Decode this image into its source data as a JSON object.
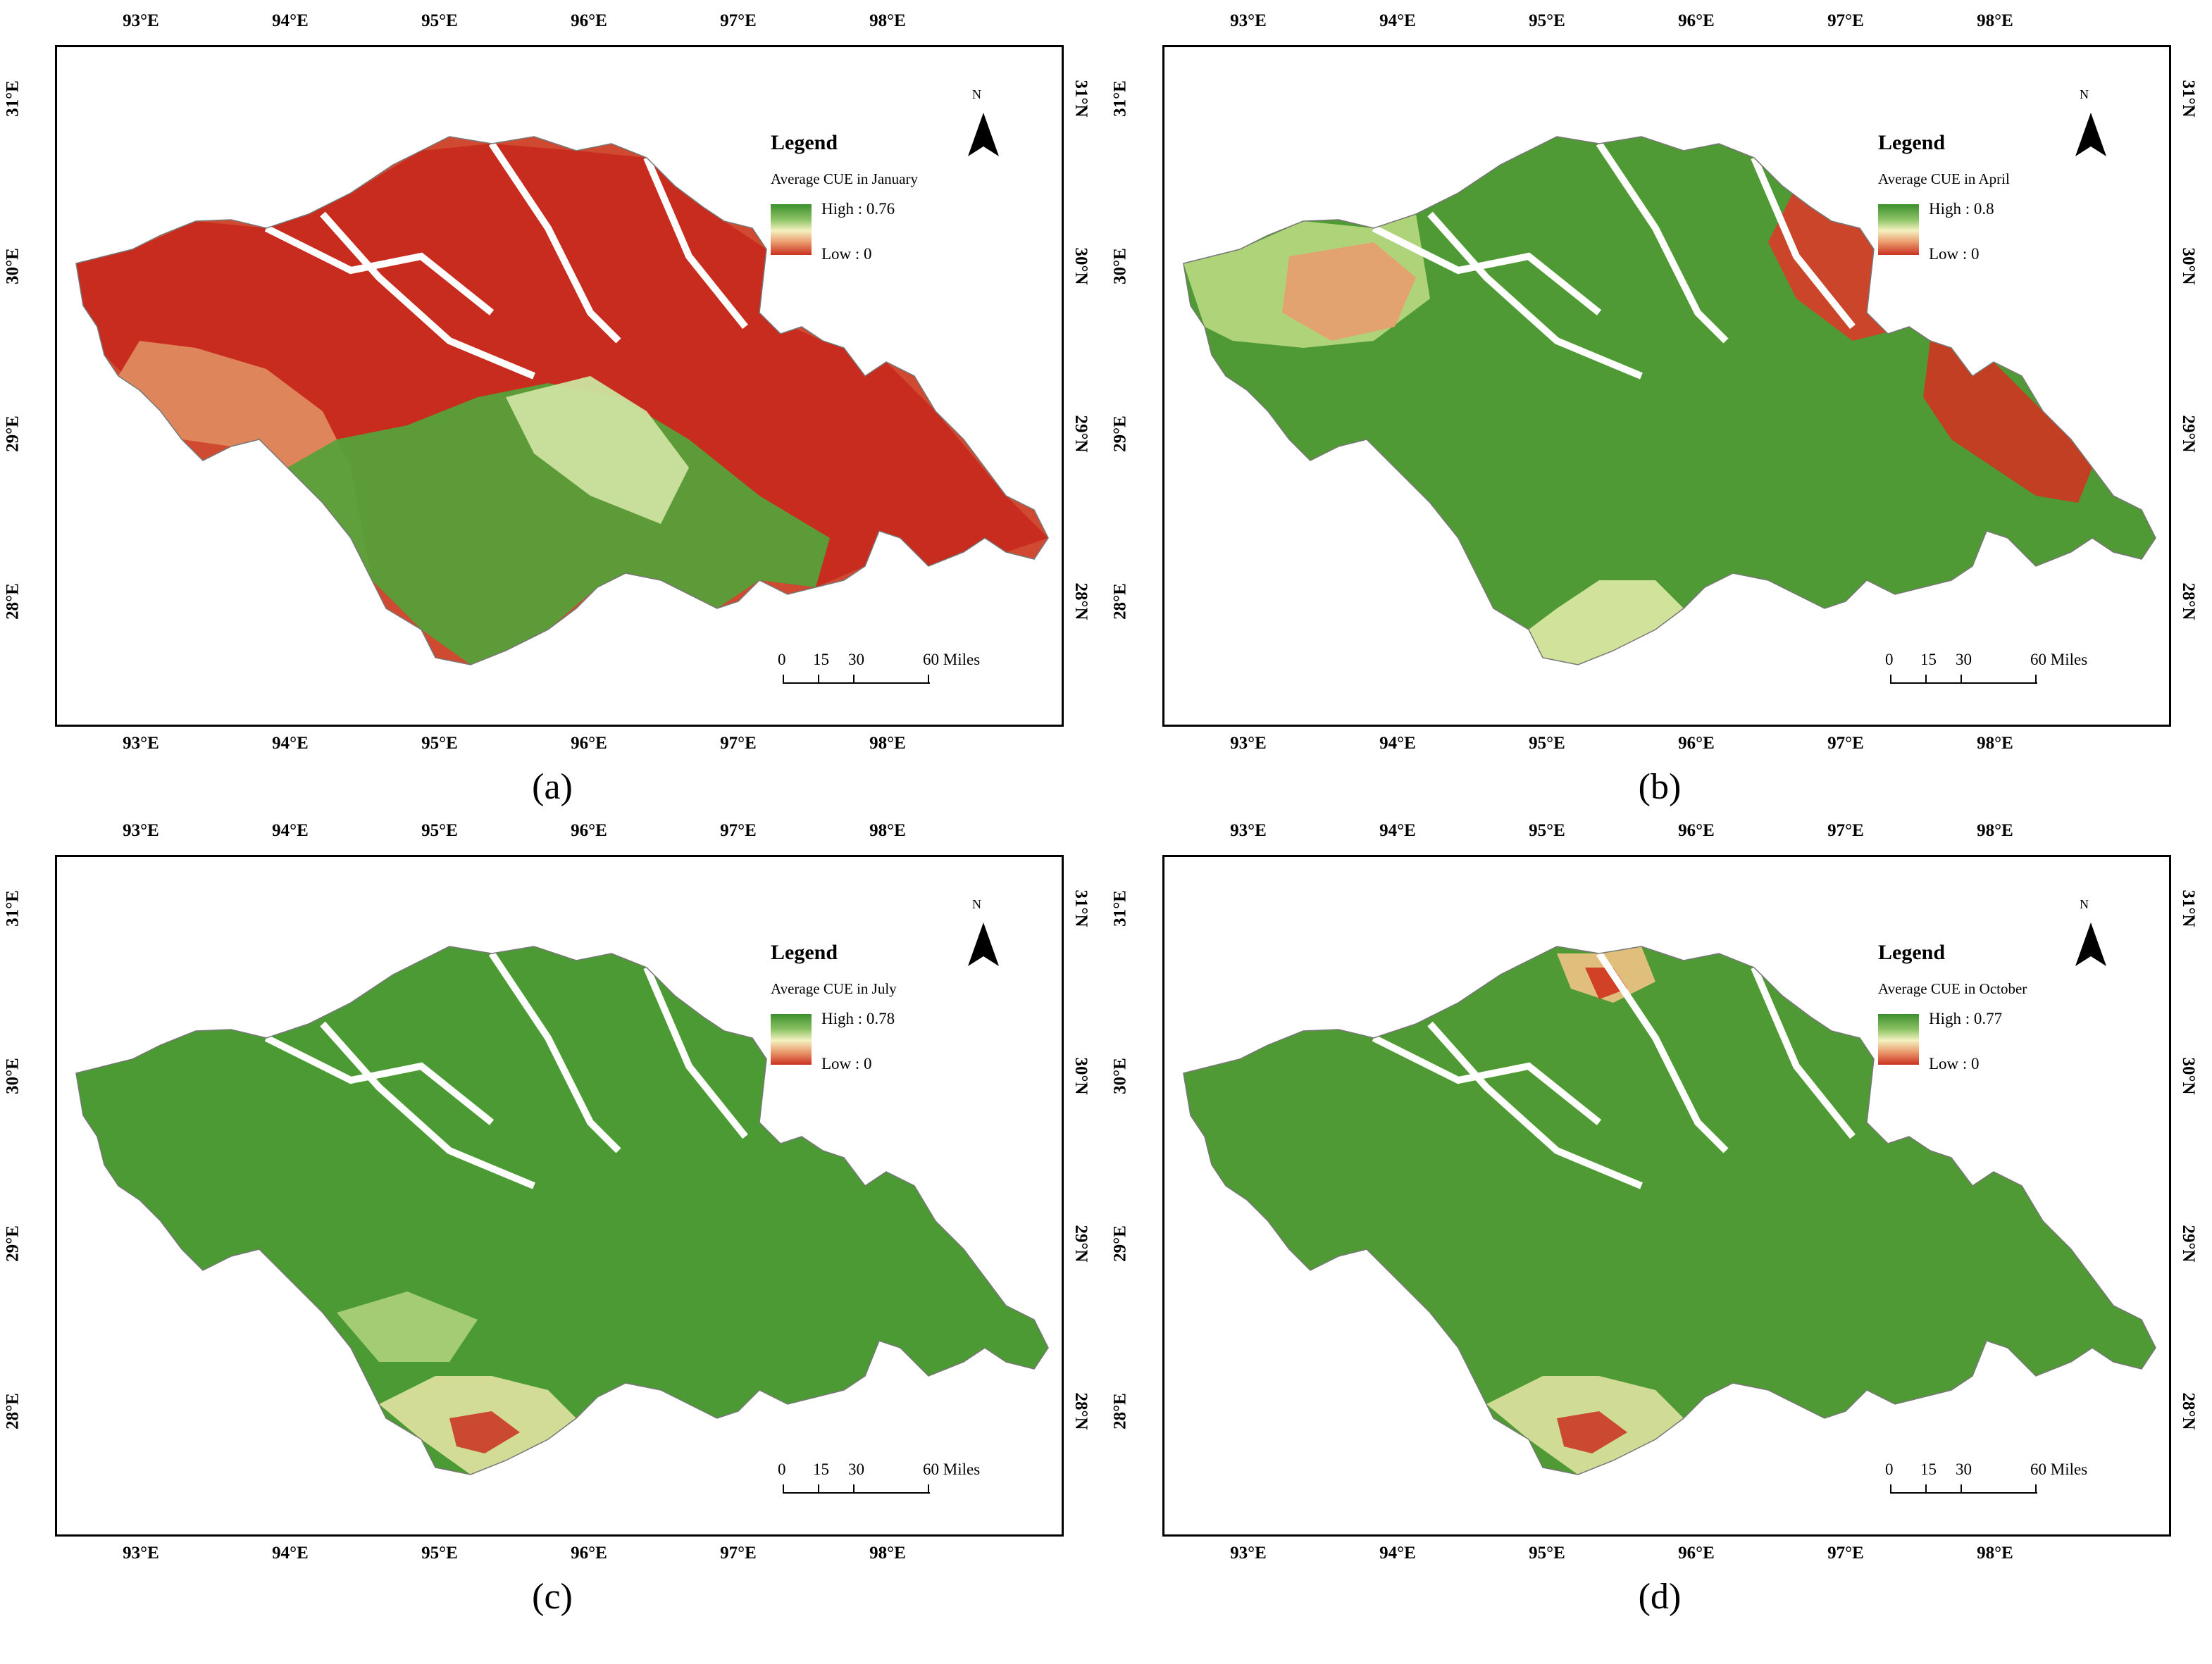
{
  "axes": {
    "lon_ticks": [
      "93°E",
      "94°E",
      "95°E",
      "96°E",
      "97°E",
      "98°E"
    ],
    "lat_ticks": [
      "31°E",
      "30°E",
      "29°E",
      "28°E"
    ],
    "lat_ticks_right": [
      "31°N",
      "30°N",
      "29°N",
      "28°N"
    ]
  },
  "legend_common": {
    "title": "Legend",
    "north": "N",
    "scale_labels": [
      "0",
      "15",
      "30",
      "60 Miles"
    ]
  },
  "colors": {
    "high": "#3c8f2d",
    "mid": "#f4f2c0",
    "low": "#c9321f"
  },
  "panels": [
    {
      "label": "(a)",
      "subtitle": "Average CUE in January",
      "high": "High : 0.76",
      "low": "Low : 0"
    },
    {
      "label": "(b)",
      "subtitle": "Average CUE in April",
      "high": "High : 0.8",
      "low": "Low : 0"
    },
    {
      "label": "(c)",
      "subtitle": "Average CUE in July",
      "high": "High : 0.78",
      "low": "Low : 0"
    },
    {
      "label": "(d)",
      "subtitle": "Average CUE in October",
      "high": "High : 0.77",
      "low": "Low : 0"
    }
  ]
}
